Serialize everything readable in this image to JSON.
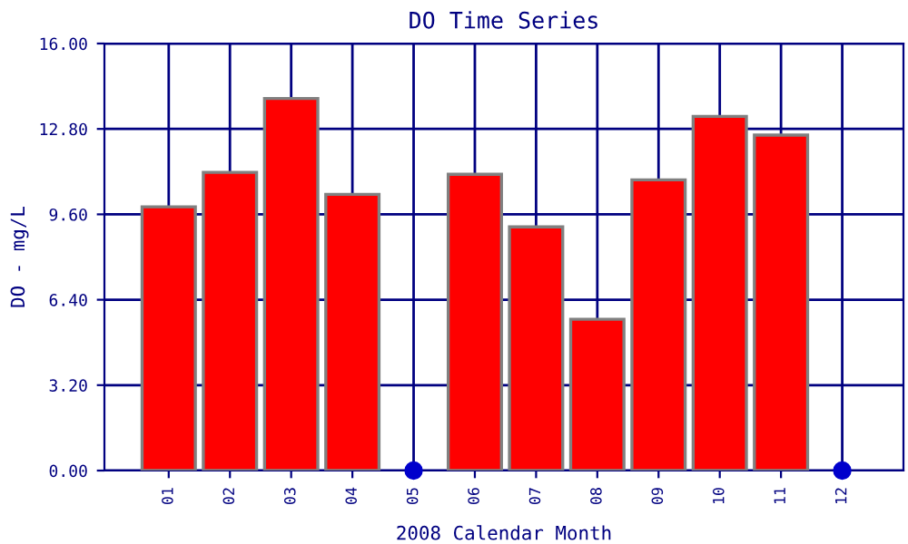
{
  "chart_data": {
    "type": "bar",
    "title": "DO Time Series",
    "xlabel": "2008 Calendar Month",
    "ylabel": "DO - mg/L",
    "categories": [
      "01",
      "02",
      "03",
      "04",
      "05",
      "06",
      "07",
      "08",
      "09",
      "10",
      "11",
      "12"
    ],
    "series": [
      {
        "color": "#ff0000",
        "values": [
          9.88,
          11.17,
          13.94,
          10.35,
          null,
          11.1,
          9.13,
          5.67,
          10.89,
          13.27,
          12.57,
          null
        ]
      },
      {
        "type": "scatter",
        "color": "#0000cc",
        "x": [
          "05",
          "12"
        ],
        "values": [
          0,
          0
        ],
        "marker": "circle"
      }
    ],
    "ylim": [
      0,
      16
    ],
    "yticks": [
      {
        "value": 0,
        "label": "0.00"
      },
      {
        "value": 3.2,
        "label": "3.20"
      },
      {
        "value": 6.4,
        "label": "6.40"
      },
      {
        "value": 9.6,
        "label": "9.60"
      },
      {
        "value": 12.8,
        "label": "12.80"
      },
      {
        "value": 16,
        "label": "16.00"
      }
    ],
    "grid": true
  }
}
